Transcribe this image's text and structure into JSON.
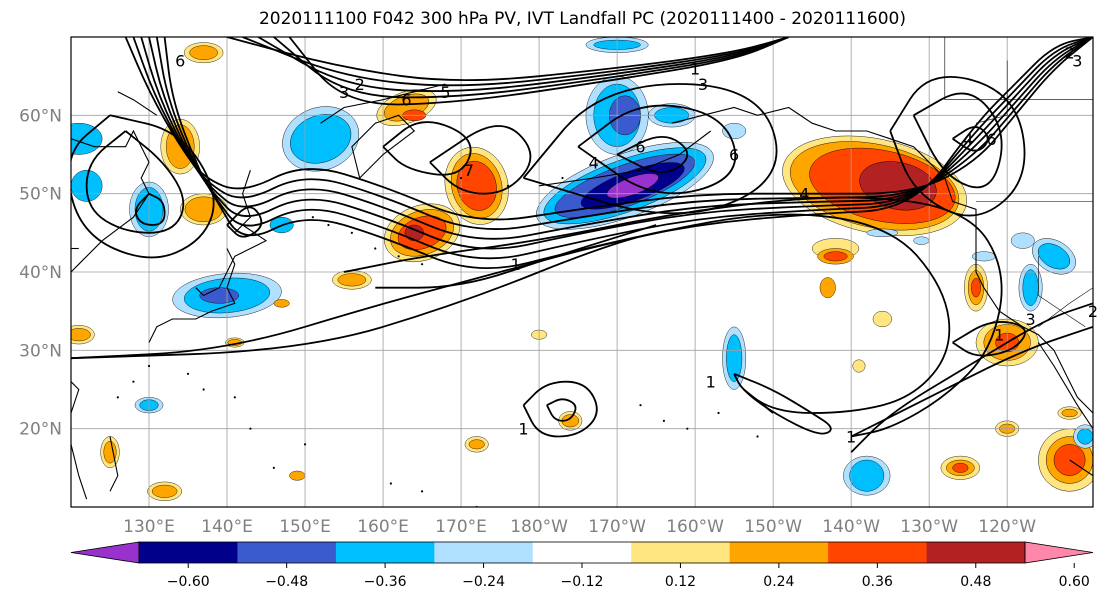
{
  "title": "2020111100 F042 300 hPa PV, IVT Landfall PC (2020111400 - 2020111600)",
  "chart_data": {
    "type": "heatmap",
    "title": "2020111100 F042 300 hPa PV, IVT Landfall PC (2020111400 - 2020111600)",
    "x_ticks": [
      "130°E",
      "140°E",
      "150°E",
      "160°E",
      "170°E",
      "180°W",
      "170°W",
      "160°W",
      "150°W",
      "140°W",
      "130°W",
      "120°W"
    ],
    "y_ticks": [
      "20°N",
      "30°N",
      "40°N",
      "50°N",
      "60°N"
    ],
    "lon_range": [
      120,
      251
    ],
    "lat_range": [
      10,
      70
    ],
    "grid": true,
    "colorbar": {
      "ticks": [
        "−0.60",
        "−0.48",
        "−0.36",
        "−0.24",
        "−0.12",
        "0.12",
        "0.24",
        "0.36",
        "0.48",
        "0.60"
      ],
      "colors": [
        "#9932cc",
        "#00008b",
        "#3a5bcd",
        "#00bfff",
        "#b0e0ff",
        "#ffffff",
        "#ffe680",
        "#ffa500",
        "#ff4500",
        "#b22222",
        "#ff88aa"
      ]
    },
    "contour_labels": [
      "6",
      "3",
      "2",
      "5",
      "6",
      "1",
      "3",
      "2",
      "3",
      "4",
      "6",
      "7",
      "4",
      "6",
      "6",
      "4",
      "1",
      "1",
      "1",
      "1",
      "3",
      "2",
      "1"
    ]
  }
}
